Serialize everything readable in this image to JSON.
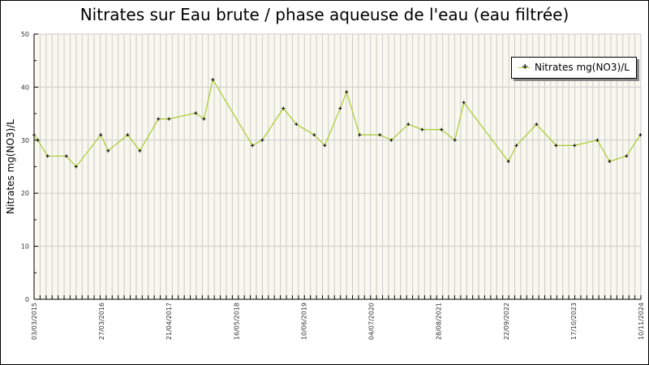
{
  "chart_data": {
    "type": "line",
    "title": "Nitrates sur Eau brute / phase aqueuse de l'eau (eau filtrée)",
    "xlabel": "",
    "ylabel": "Nitrates mg(NO3)/L",
    "ylim": [
      0,
      50
    ],
    "yticks": [
      0,
      10,
      20,
      30,
      40,
      50
    ],
    "xlim": [
      "2015-03-03",
      "2024-11-10"
    ],
    "xtick_labels": [
      "03/03/2015",
      "27/03/2016",
      "21/04/2017",
      "16/05/2018",
      "10/06/2019",
      "04/07/2020",
      "28/08/2021",
      "22/09/2022",
      "17/10/2023",
      "10/11/2024"
    ],
    "grid": true,
    "legend_position": "top-right",
    "series": [
      {
        "name": "Nitrates mg(NO3)/L",
        "color": "#a8cc2c",
        "x": [
          "2015-03-03",
          "2015-03-25",
          "2015-05-21",
          "2015-09-07",
          "2015-11-03",
          "2016-03-26",
          "2016-05-08",
          "2016-08-30",
          "2016-11-09",
          "2017-02-25",
          "2017-04-28",
          "2017-10-01",
          "2017-11-18",
          "2018-01-09",
          "2018-08-28",
          "2018-10-24",
          "2019-02-24",
          "2019-05-11",
          "2019-08-23",
          "2019-10-24",
          "2020-01-22",
          "2020-02-28",
          "2020-05-14",
          "2020-09-09",
          "2020-11-15",
          "2021-02-22",
          "2021-05-14",
          "2021-09-04",
          "2021-11-21",
          "2022-01-12",
          "2022-09-29",
          "2022-11-15",
          "2023-03-12",
          "2023-07-04",
          "2023-10-20",
          "2024-03-01",
          "2024-05-11",
          "2024-08-18",
          "2024-11-07"
        ],
        "y": [
          31,
          30,
          27,
          27,
          25,
          31,
          28,
          31,
          28,
          34,
          34,
          35.1,
          34,
          41.4,
          29,
          30,
          36,
          33,
          31,
          29,
          36,
          39.1,
          31,
          31,
          30,
          33,
          32,
          32,
          30,
          37.1,
          26,
          29,
          33,
          29,
          29,
          30,
          26,
          27,
          31
        ]
      }
    ]
  }
}
